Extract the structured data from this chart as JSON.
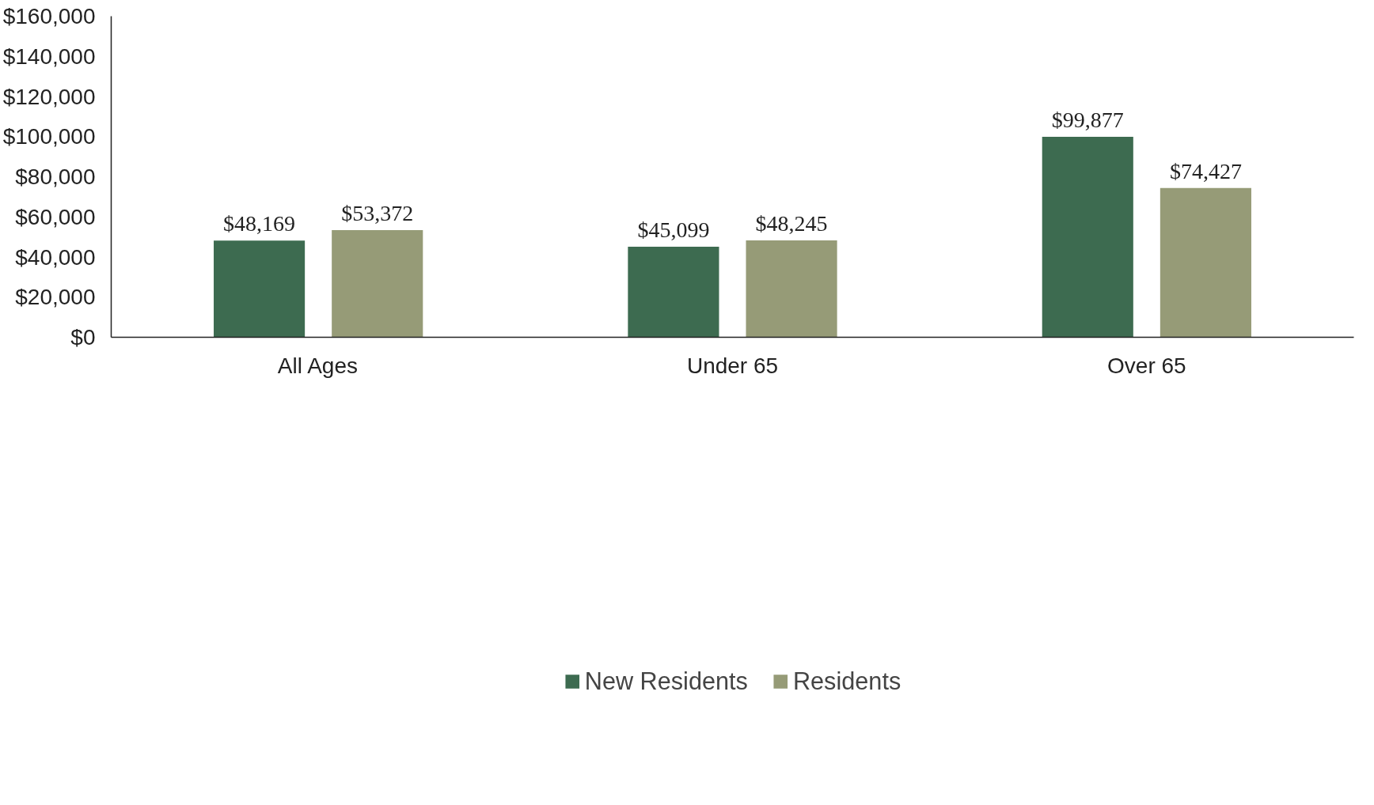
{
  "chart_data": {
    "type": "bar",
    "categories": [
      "All Ages",
      "Under 65",
      "Over 65"
    ],
    "series": [
      {
        "name": "New Residents",
        "color": "#3d6b50",
        "values": [
          48169,
          45099,
          99877
        ],
        "value_labels": [
          "$48,169",
          "$45,099",
          "$99,877"
        ]
      },
      {
        "name": "Residents",
        "color": "#969b77",
        "values": [
          53372,
          48245,
          74427
        ],
        "value_labels": [
          "$53,372",
          "$48,245",
          "$74,427"
        ]
      }
    ],
    "ylim": [
      0,
      160000
    ],
    "yticks": [
      {
        "value": 0,
        "label": "$0"
      },
      {
        "value": 20000,
        "label": "$20,000"
      },
      {
        "value": 40000,
        "label": "$40,000"
      },
      {
        "value": 60000,
        "label": "$60,000"
      },
      {
        "value": 80000,
        "label": "$80,000"
      },
      {
        "value": 100000,
        "label": "$100,000"
      },
      {
        "value": 120000,
        "label": "$120,000"
      },
      {
        "value": 140000,
        "label": "$140,000"
      },
      {
        "value": 160000,
        "label": "$160,000"
      }
    ],
    "grid": false,
    "legend": "bottom"
  }
}
